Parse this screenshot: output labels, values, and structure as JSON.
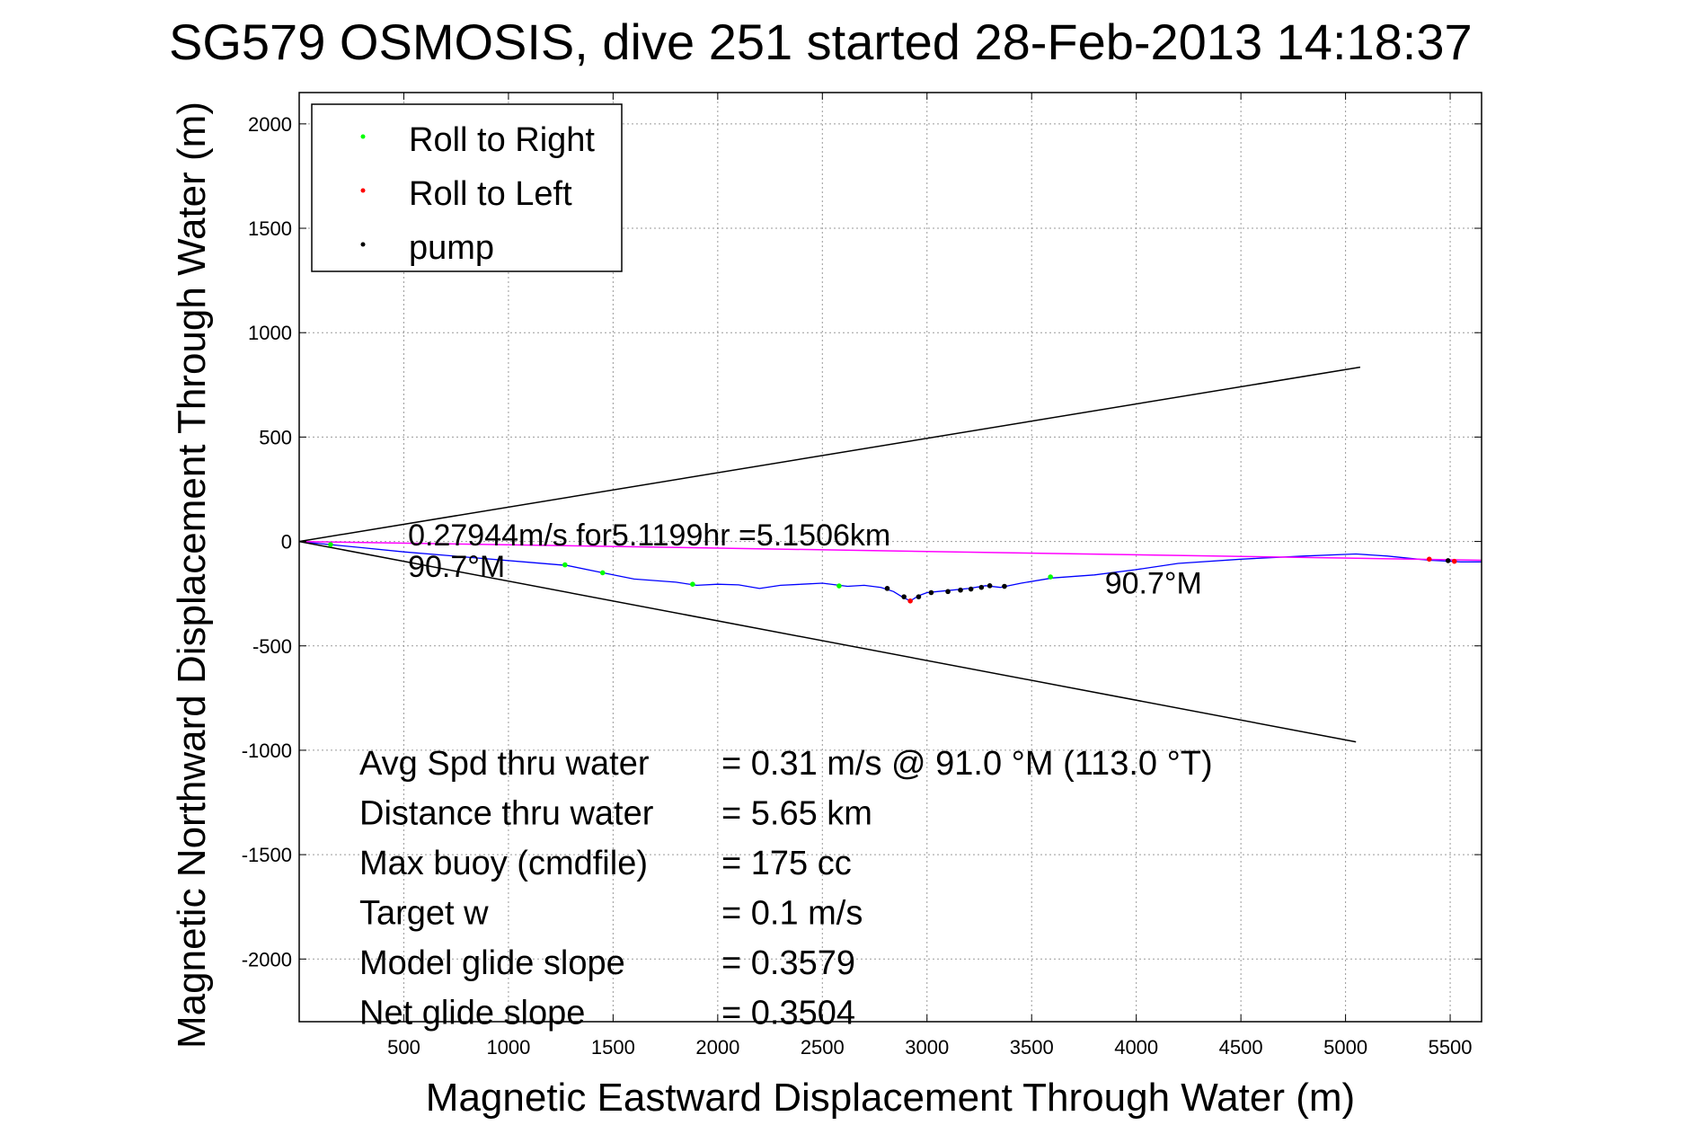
{
  "chart_data": {
    "type": "line",
    "title": "SG579 OSMOSIS, dive 251 started 28-Feb-2013 14:18:37",
    "xlabel": "Magnetic Eastward Displacement Through Water (m)",
    "ylabel": "Magnetic Northward Displacement Through Water (m)",
    "xlim": [
      0,
      5650
    ],
    "ylim": [
      -2300,
      2150
    ],
    "xticks": [
      500,
      1000,
      1500,
      2000,
      2500,
      3000,
      3500,
      4000,
      4500,
      5000,
      5500
    ],
    "yticks": [
      2000,
      1500,
      1000,
      500,
      0,
      -500,
      -1000,
      -1500,
      -2000
    ],
    "grid": true,
    "legend": {
      "placement": "top-left",
      "entries": [
        {
          "label": "Roll to Right",
          "color": "#00ff00"
        },
        {
          "label": "Roll to Left",
          "color": "#ff0000"
        },
        {
          "label": "pump",
          "color": "#000000"
        }
      ]
    },
    "series": [
      {
        "color": "#0000ff",
        "x": [
          0,
          150,
          300,
          500,
          800,
          1100,
          1280,
          1450,
          1600,
          1800,
          1900,
          2000,
          2100,
          2200,
          2300,
          2400,
          2500,
          2620,
          2700,
          2780,
          2840,
          2880,
          2920,
          2960,
          3000,
          3050,
          3100,
          3200,
          3280,
          3350,
          3450,
          3600,
          3800,
          4000,
          4200,
          4500,
          4800,
          5050,
          5200,
          5300,
          5400,
          5500,
          5550,
          5650
        ],
        "y": [
          0,
          -15,
          -30,
          -50,
          -75,
          -100,
          -115,
          -150,
          -180,
          -195,
          -210,
          -205,
          -208,
          -225,
          -210,
          -205,
          -200,
          -215,
          -210,
          -220,
          -240,
          -265,
          -285,
          -260,
          -245,
          -240,
          -235,
          -225,
          -212,
          -220,
          -200,
          -175,
          -160,
          -135,
          -105,
          -85,
          -70,
          -60,
          -70,
          -80,
          -90,
          -95,
          -98,
          -98
        ]
      },
      {
        "color": "#ff00ff",
        "x": [
          0,
          5650
        ],
        "y": [
          0,
          -90
        ]
      },
      {
        "color": "#000000",
        "x": [
          0,
          5070
        ],
        "y": [
          0,
          835
        ]
      },
      {
        "color": "#000000",
        "x": [
          0,
          5050
        ],
        "y": [
          0,
          -960
        ]
      }
    ],
    "markers": {
      "roll_right": {
        "color": "#00ff00",
        "x": [
          150,
          1270,
          1450,
          1880,
          2580,
          3590
        ],
        "y": [
          -15,
          -112,
          -150,
          -205,
          -213,
          -170
        ]
      },
      "roll_left": {
        "color": "#ff0000",
        "x": [
          2920,
          5400,
          5520
        ],
        "y": [
          -285,
          -85,
          -95
        ]
      },
      "pump": {
        "color": "#000000",
        "x": [
          2810,
          2890,
          2960,
          3020,
          3100,
          3160,
          3210,
          3260,
          3300,
          3370,
          5490
        ],
        "y": [
          -225,
          -265,
          -265,
          -245,
          -240,
          -233,
          -228,
          -220,
          -212,
          -215,
          -92
        ]
      }
    },
    "annotations": [
      {
        "text": "0.27944m/s for5.1199hr =5.1506km",
        "x": 520,
        "y": -20
      },
      {
        "text": "90.7°M",
        "x": 520,
        "y": -170
      },
      {
        "text": "90.7°M",
        "x": 3850,
        "y": -250
      }
    ],
    "stats": [
      {
        "label": "Avg Spd thru water",
        "value": "=  0.31 m/s @  91.0 °M (113.0 °T)"
      },
      {
        "label": "Distance thru water",
        "value": "=  5.65 km"
      },
      {
        "label": "Max buoy (cmdfile)",
        "value": "= 175 cc"
      },
      {
        "label": "Target w",
        "value": "= 0.1 m/s"
      },
      {
        "label": "Model glide slope",
        "value": "= 0.3579"
      },
      {
        "label": "Net glide slope",
        "value": "= 0.3504"
      }
    ]
  }
}
